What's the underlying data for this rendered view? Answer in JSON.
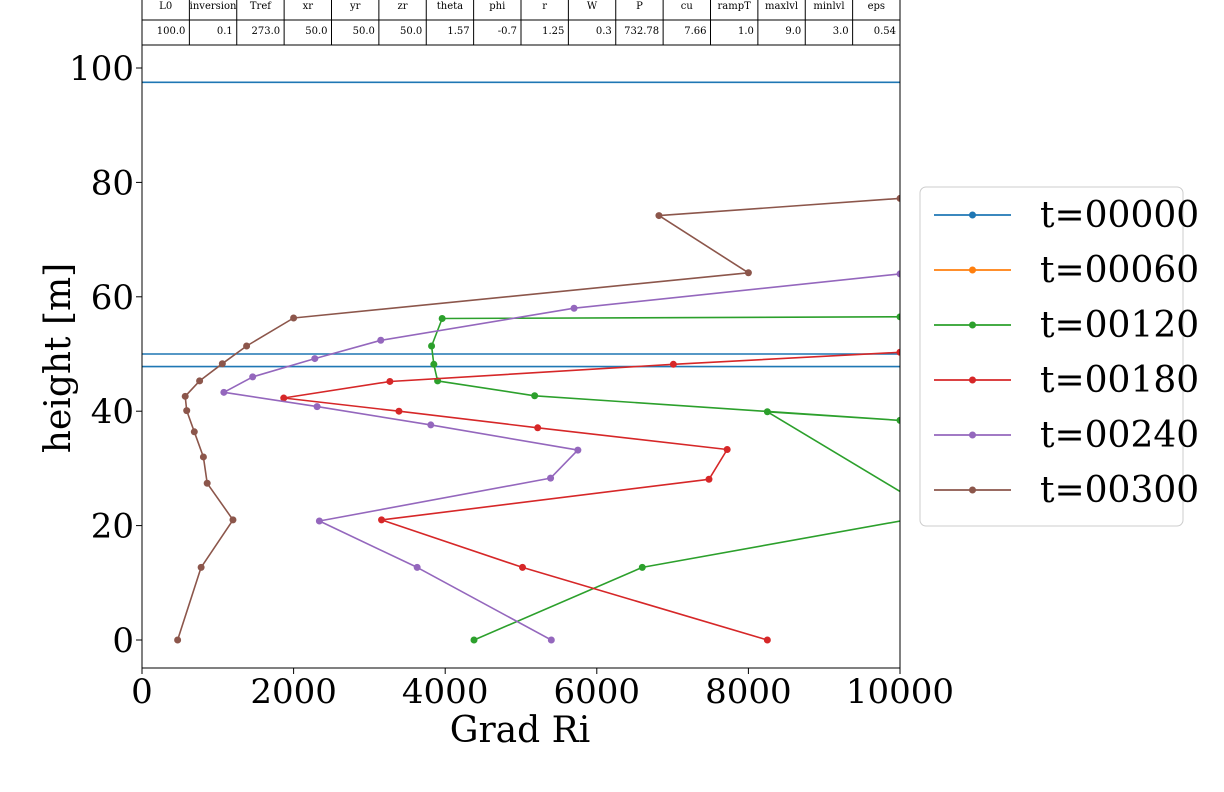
{
  "chart_data": {
    "type": "line",
    "xlabel": "Grad Ri",
    "ylabel": "height [m]",
    "xlim": [
      0,
      10000
    ],
    "ylim": [
      -5,
      104
    ],
    "xticks": [
      0,
      2000,
      4000,
      6000,
      8000,
      10000
    ],
    "yticks": [
      0,
      20,
      40,
      60,
      80,
      100
    ],
    "grid": false,
    "legend_position": "right",
    "hlines": {
      "color": "#1f77b4",
      "values": [
        97.5,
        50.0,
        47.8
      ]
    },
    "series": [
      {
        "name": "t=00000",
        "color": "#1f77b4",
        "points": []
      },
      {
        "name": "t=00060",
        "color": "#ff7f0e",
        "points": []
      },
      {
        "name": "t=00120",
        "color": "#2ca02c",
        "points": [
          [
            4380,
            0
          ],
          [
            6600,
            12.7
          ],
          [
            10500,
            22
          ],
          [
            8250,
            39.9
          ],
          [
            10000,
            38.4
          ],
          [
            5180,
            42.7
          ],
          [
            3900,
            45.3
          ],
          [
            3850,
            48.2
          ],
          [
            3820,
            51.4
          ],
          [
            3960,
            56.2
          ],
          [
            10000,
            56.5
          ]
        ]
      },
      {
        "name": "t=00180",
        "color": "#d62728",
        "points": [
          [
            8250,
            0
          ],
          [
            5020,
            12.7
          ],
          [
            3160,
            21.0
          ],
          [
            7480,
            28.1
          ],
          [
            7720,
            33.3
          ],
          [
            5220,
            37.1
          ],
          [
            3390,
            40.0
          ],
          [
            1870,
            42.3
          ],
          [
            3270,
            45.2
          ],
          [
            7010,
            48.2
          ],
          [
            10000,
            50.3
          ]
        ]
      },
      {
        "name": "t=00240",
        "color": "#9467bd",
        "points": [
          [
            5400,
            0
          ],
          [
            3630,
            12.7
          ],
          [
            2340,
            20.8
          ],
          [
            5390,
            28.3
          ],
          [
            5750,
            33.2
          ],
          [
            3810,
            37.6
          ],
          [
            2310,
            40.8
          ],
          [
            1080,
            43.3
          ],
          [
            1460,
            46.0
          ],
          [
            2280,
            49.2
          ],
          [
            3150,
            52.4
          ],
          [
            5700,
            58.0
          ],
          [
            10000,
            64.0
          ]
        ]
      },
      {
        "name": "t=00300",
        "color": "#8c564b",
        "points": [
          [
            470,
            0
          ],
          [
            780,
            12.7
          ],
          [
            1200,
            21.0
          ],
          [
            860,
            27.4
          ],
          [
            810,
            32.0
          ],
          [
            690,
            36.4
          ],
          [
            590,
            40.1
          ],
          [
            570,
            42.6
          ],
          [
            760,
            45.3
          ],
          [
            1060,
            48.3
          ],
          [
            1380,
            51.4
          ],
          [
            2000,
            56.3
          ],
          [
            8000,
            64.2
          ],
          [
            6820,
            74.2
          ],
          [
            10000,
            77.2
          ]
        ]
      }
    ],
    "table": {
      "headers": [
        "L0",
        "inversion",
        "Tref",
        "xr",
        "yr",
        "zr",
        "theta",
        "phi",
        "r",
        "W",
        "P",
        "cu",
        "rampT",
        "maxlvl",
        "minlvl",
        "eps"
      ],
      "values": [
        "100.0",
        "0.1",
        "273.0",
        "50.0",
        "50.0",
        "50.0",
        "1.57",
        "-0.7",
        "1.25",
        "0.3",
        "732.78",
        "7.66",
        "1.0",
        "9.0",
        "3.0",
        "0.54"
      ]
    }
  }
}
